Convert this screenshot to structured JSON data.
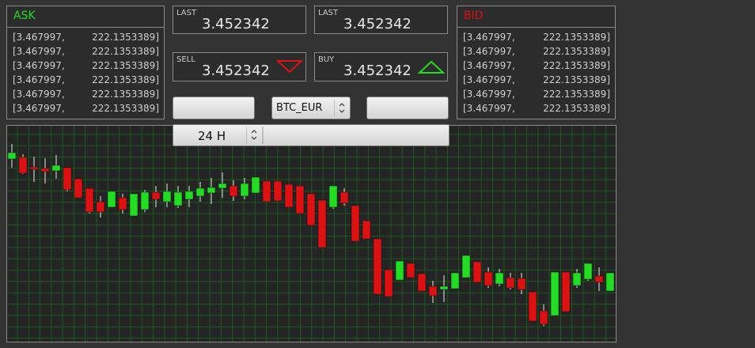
{
  "ask": {
    "title": "ASK",
    "rows": [
      [
        "[3.467997,",
        "222.1353389]"
      ],
      [
        "[3.467997,",
        "222.1353389]"
      ],
      [
        "[3.467997,",
        "222.1353389]"
      ],
      [
        "[3.467997,",
        "222.1353389]"
      ],
      [
        "[3.467997,",
        "222.1353389]"
      ],
      [
        "[3.467997,",
        "222.1353389]"
      ]
    ]
  },
  "bid": {
    "title": "BID",
    "rows": [
      [
        "[3.467997,",
        "222.1353389]"
      ],
      [
        "[3.467997,",
        "222.1353389]"
      ],
      [
        "[3.467997,",
        "222.1353389]"
      ],
      [
        "[3.467997,",
        "222.1353389]"
      ],
      [
        "[3.467997,",
        "222.1353389]"
      ],
      [
        "[3.467997,",
        "222.1353389]"
      ]
    ]
  },
  "tickers": [
    {
      "label": "LAST",
      "value": "3.452342"
    },
    {
      "label": "LAST",
      "value": "3.452342"
    },
    {
      "label": "SELL",
      "value": "3.452342"
    },
    {
      "label": "BUY",
      "value": "3.452342"
    }
  ],
  "pair_select": "BTC_EUR",
  "period_select": "24 H",
  "chart_data": {
    "type": "candlestick",
    "open": [
      231,
      233,
      221,
      219,
      216,
      220,
      206,
      194,
      177,
      170,
      182,
      159,
      167,
      189,
      177,
      172,
      180,
      184,
      188,
      194,
      197,
      184,
      188,
      203,
      203,
      199,
      197,
      187,
      179,
      170,
      189,
      172,
      153,
      130,
      91,
      78,
      99,
      86,
      70,
      66,
      67,
      81,
      101,
      88,
      73,
      81,
      80,
      63,
      39,
      33,
      88,
      71,
      79,
      83,
      64
    ],
    "high": [
      250,
      237,
      234,
      232,
      236,
      220,
      206,
      194,
      184,
      190,
      187,
      187,
      192,
      197,
      200,
      197,
      197,
      202,
      207,
      214,
      204,
      207,
      208,
      203,
      203,
      199,
      197,
      187,
      179,
      197,
      194,
      172,
      153,
      130,
      91,
      102,
      99,
      86,
      77,
      84,
      87,
      109,
      101,
      94,
      92,
      87,
      87,
      63,
      47,
      88,
      88,
      92,
      99,
      94,
      87
    ],
    "low": [
      220,
      212,
      202,
      200,
      206,
      190,
      182,
      162,
      157,
      170,
      162,
      159,
      164,
      170,
      170,
      169,
      170,
      177,
      174,
      182,
      178,
      180,
      188,
      177,
      178,
      170,
      162,
      147,
      119,
      168,
      172,
      127,
      130,
      60,
      57,
      78,
      81,
      64,
      49,
      50,
      67,
      81,
      75,
      68,
      70,
      66,
      60,
      26,
      20,
      33,
      38,
      68,
      77,
      64,
      64
    ],
    "close": [
      239,
      213,
      218,
      215,
      223,
      192,
      182,
      164,
      164,
      190,
      167,
      187,
      189,
      180,
      190,
      189,
      190,
      194,
      195,
      200,
      184,
      200,
      208,
      177,
      178,
      170,
      162,
      147,
      119,
      197,
      175,
      127,
      130,
      60,
      57,
      102,
      81,
      64,
      58,
      70,
      87,
      109,
      75,
      71,
      87,
      68,
      66,
      26,
      22,
      88,
      38,
      87,
      99,
      75,
      87
    ],
    "up_color": "#22dd22",
    "down_color": "#dd1111",
    "ylim": [
      0,
      273
    ],
    "grid": true
  }
}
